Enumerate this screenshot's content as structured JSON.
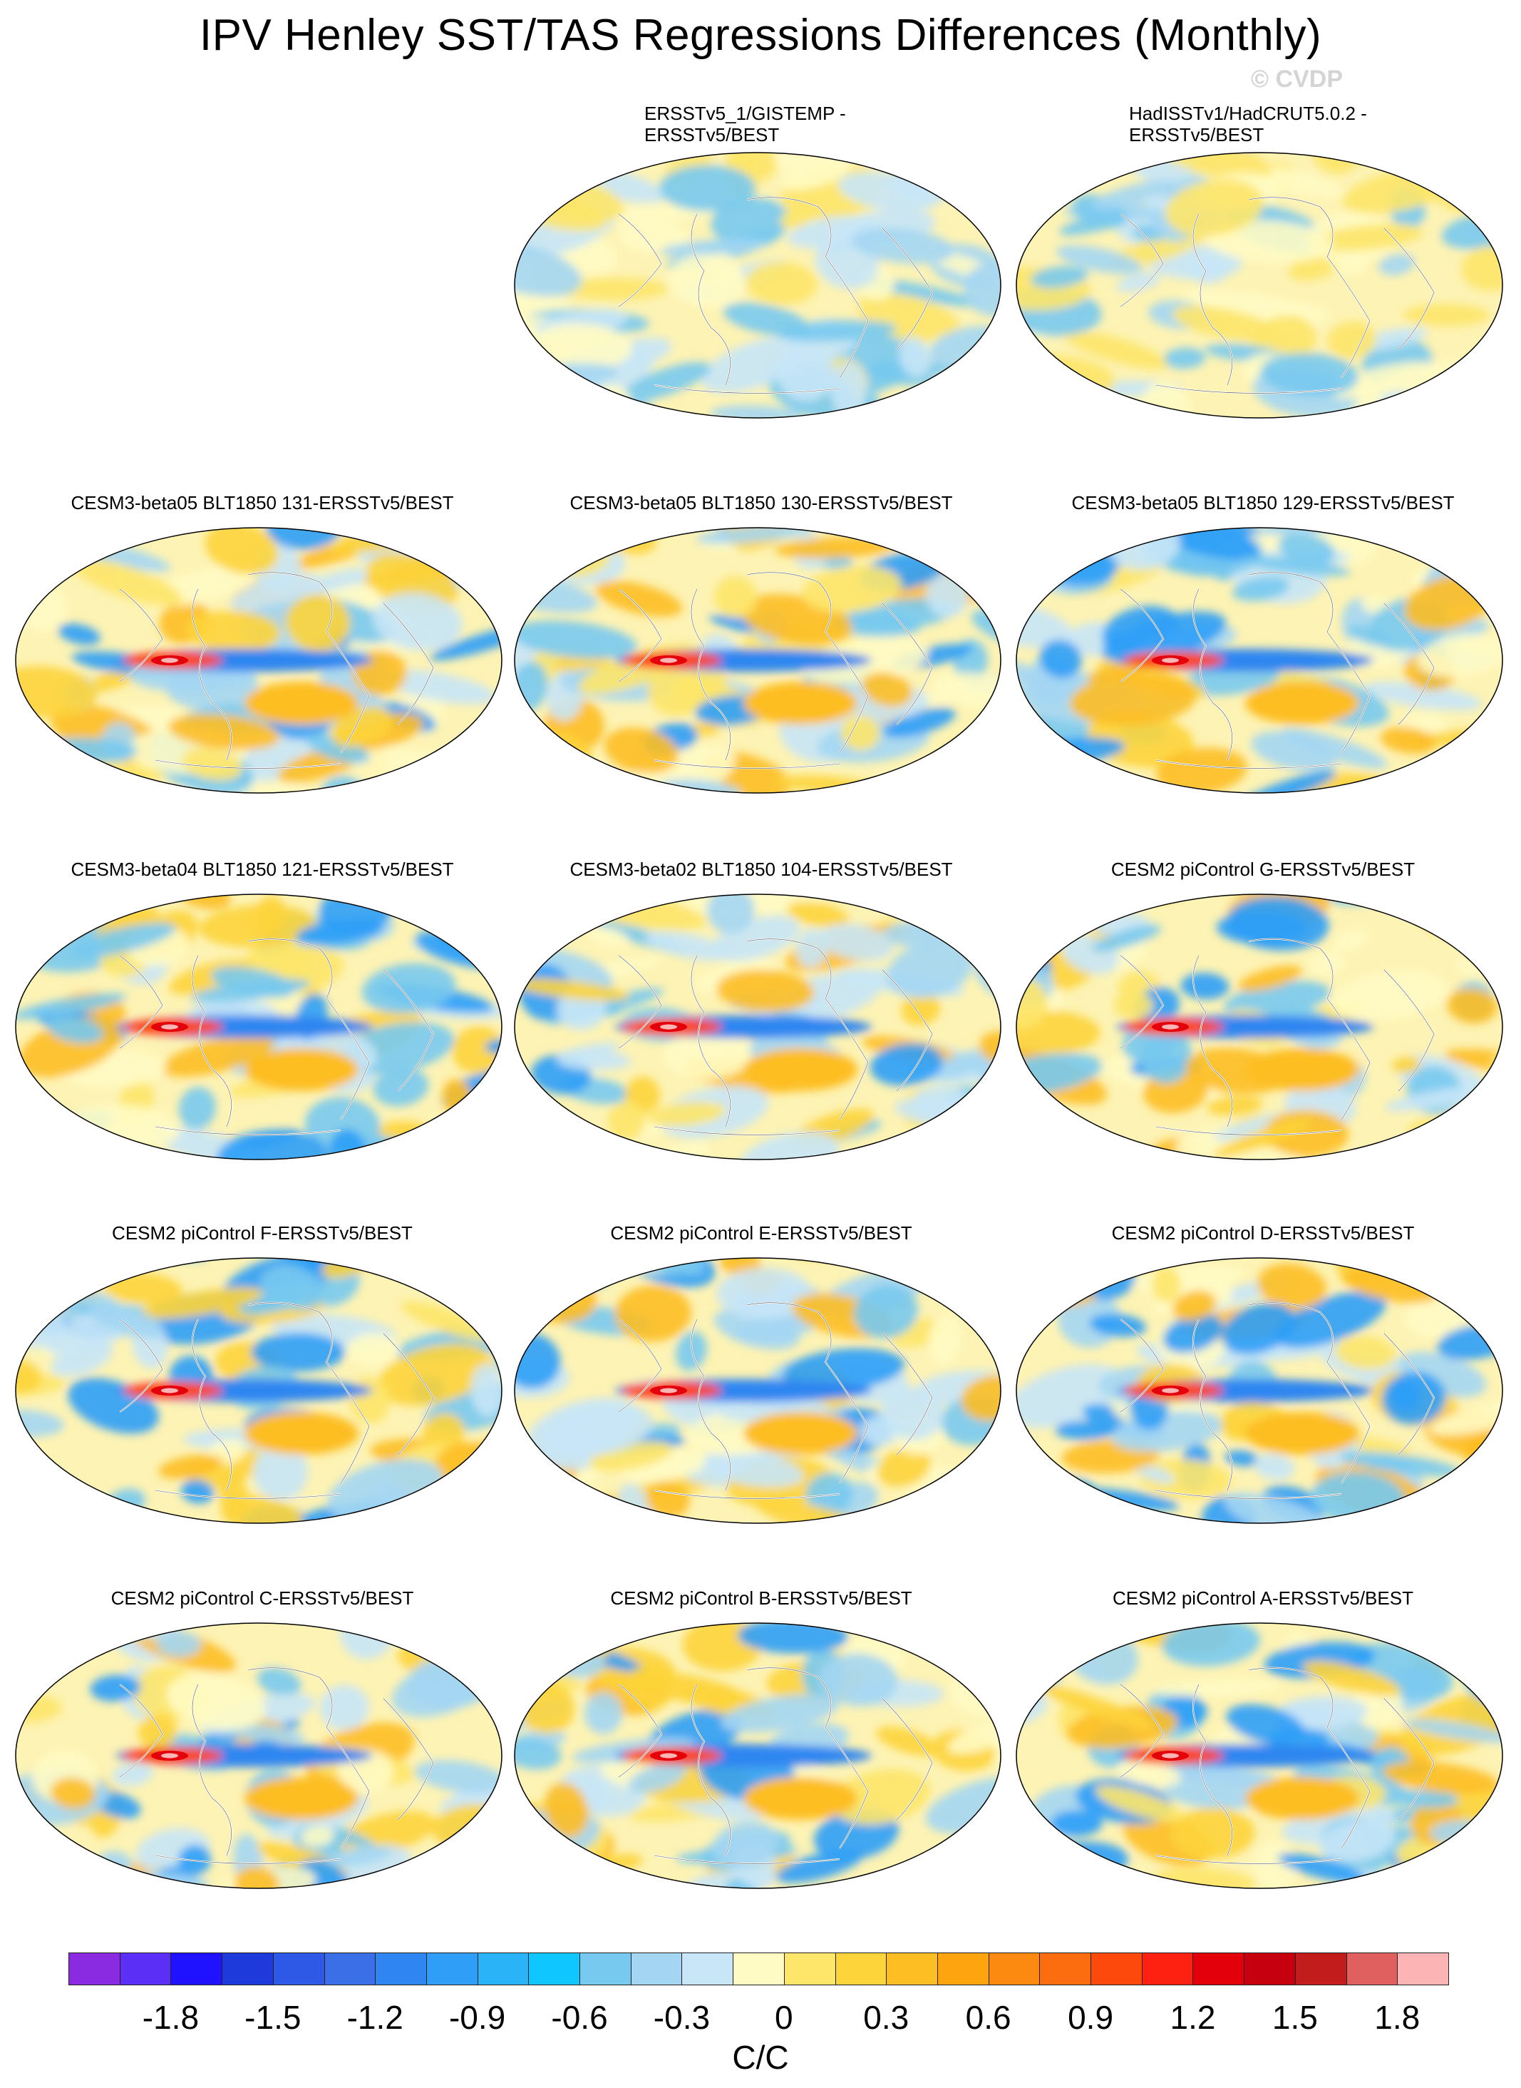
{
  "title": "IPV Henley SST/TAS Regressions Differences (Monthly)",
  "watermark": "© CVDP",
  "panels": [
    {
      "title": "ERSSTv5_1/GISTEMP -\nERSSTv5/BEST",
      "two_line": true,
      "intensity": 0.25,
      "seed": 3
    },
    {
      "title": "HadISSTv1/HadCRUT5.0.2 -\nERSSTv5/BEST",
      "two_line": true,
      "intensity": 0.3,
      "seed": 7
    },
    {
      "title": "CESM3-beta05 BLT1850 131-ERSSTv5/BEST",
      "two_line": false,
      "intensity": 0.9,
      "seed": 11
    },
    {
      "title": "CESM3-beta05 BLT1850 130-ERSSTv5/BEST",
      "two_line": false,
      "intensity": 0.85,
      "seed": 13
    },
    {
      "title": "CESM3-beta05 BLT1850 129-ERSSTv5/BEST",
      "two_line": false,
      "intensity": 0.9,
      "seed": 17
    },
    {
      "title": "CESM3-beta04 BLT1850 121-ERSSTv5/BEST",
      "two_line": false,
      "intensity": 0.95,
      "seed": 19
    },
    {
      "title": "CESM3-beta02 BLT1850 104-ERSSTv5/BEST",
      "two_line": false,
      "intensity": 1.0,
      "seed": 23
    },
    {
      "title": "CESM2 piControl G-ERSSTv5/BEST",
      "two_line": false,
      "intensity": 0.7,
      "seed": 29
    },
    {
      "title": "CESM2 piControl F-ERSSTv5/BEST",
      "two_line": false,
      "intensity": 0.7,
      "seed": 31
    },
    {
      "title": "CESM2 piControl E-ERSSTv5/BEST",
      "two_line": false,
      "intensity": 0.72,
      "seed": 37
    },
    {
      "title": "CESM2 piControl D-ERSSTv5/BEST",
      "two_line": false,
      "intensity": 0.7,
      "seed": 41
    },
    {
      "title": "CESM2 piControl C-ERSSTv5/BEST",
      "two_line": false,
      "intensity": 0.75,
      "seed": 43
    },
    {
      "title": "CESM2 piControl B-ERSSTv5/BEST",
      "two_line": false,
      "intensity": 0.72,
      "seed": 47
    },
    {
      "title": "CESM2 piControl A-ERSSTv5/BEST",
      "two_line": false,
      "intensity": 0.7,
      "seed": 53
    }
  ],
  "colorbar": {
    "colors": [
      "#8a2be2",
      "#5b2ff5",
      "#1f13ff",
      "#1e3adb",
      "#2e58e6",
      "#3a6fe8",
      "#2f86f2",
      "#2e9ef7",
      "#2bb3f8",
      "#0fc6ff",
      "#78c9f0",
      "#a4d6f3",
      "#c8e6f7",
      "#fffbc4",
      "#fde66a",
      "#fdd43a",
      "#fdbe24",
      "#fda40f",
      "#fc8a10",
      "#fc6d10",
      "#fd4a0c",
      "#fe2010",
      "#e4000b",
      "#c6000e",
      "#c31c1c",
      "#e06060",
      "#fdb4b4"
    ],
    "tick_labels": [
      "-1.8",
      "-1.5",
      "-1.2",
      "-0.9",
      "-0.6",
      "-0.3",
      "0",
      "0.3",
      "0.6",
      "0.9",
      "1.2",
      "1.5",
      "1.8"
    ],
    "unit": "C/C"
  }
}
